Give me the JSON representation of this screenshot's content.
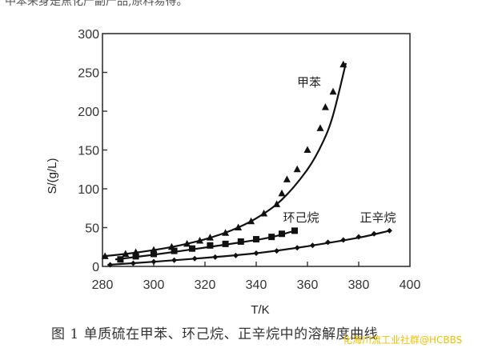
{
  "header_fragment": "中苯来身是焦化产副产品,原料易得。",
  "caption": "图 1   单质硫在甲苯、环己烷、正辛烷中的溶解度曲线",
  "watermark": "化海川流工业社群@HCBBS",
  "chart_data": {
    "type": "line",
    "title": "",
    "xlabel": "T/K",
    "ylabel": "S/(g/L)",
    "xlim": [
      280,
      400
    ],
    "ylim": [
      0,
      300
    ],
    "x_ticks": [
      "280",
      "300",
      "320",
      "340",
      "360",
      "380",
      "400"
    ],
    "y_ticks": [
      "0",
      "50",
      "100",
      "150",
      "200",
      "250",
      "300"
    ],
    "grid": false,
    "series": [
      {
        "name": "甲苯",
        "marker": "triangle",
        "points": [
          [
            281,
            13
          ],
          [
            289,
            16
          ],
          [
            293,
            18
          ],
          [
            300,
            21
          ],
          [
            307,
            25
          ],
          [
            313,
            29
          ],
          [
            318,
            33
          ],
          [
            322,
            37
          ],
          [
            328,
            43
          ],
          [
            333,
            50
          ],
          [
            338,
            58
          ],
          [
            343,
            68
          ],
          [
            348,
            80
          ],
          [
            350,
            94
          ],
          [
            352,
            112
          ],
          [
            356,
            125
          ],
          [
            360,
            150
          ],
          [
            365,
            178
          ],
          [
            367,
            205
          ],
          [
            370,
            225
          ],
          [
            374,
            260
          ]
        ],
        "curve": [
          [
            280,
            13
          ],
          [
            290,
            16.5
          ],
          [
            300,
            21
          ],
          [
            310,
            27
          ],
          [
            320,
            35
          ],
          [
            330,
            46
          ],
          [
            340,
            62
          ],
          [
            350,
            86
          ],
          [
            360,
            125
          ],
          [
            366,
            160
          ],
          [
            370,
            195
          ],
          [
            375,
            262
          ]
        ]
      },
      {
        "name": "环己烷",
        "marker": "square",
        "points": [
          [
            287,
            9
          ],
          [
            293,
            13
          ],
          [
            300,
            16
          ],
          [
            308,
            20
          ],
          [
            315,
            23
          ],
          [
            322,
            27
          ],
          [
            328,
            29
          ],
          [
            334,
            32
          ],
          [
            340,
            35
          ],
          [
            346,
            38
          ],
          [
            350,
            42
          ],
          [
            355,
            46
          ]
        ],
        "curve": [
          [
            285,
            9
          ],
          [
            300,
            15
          ],
          [
            315,
            22
          ],
          [
            330,
            29
          ],
          [
            345,
            37
          ],
          [
            355,
            46
          ]
        ]
      },
      {
        "name": "正辛烷",
        "marker": "diamond",
        "points": [
          [
            283,
            2
          ],
          [
            292,
            4
          ],
          [
            300,
            6
          ],
          [
            308,
            8
          ],
          [
            316,
            10
          ],
          [
            324,
            12
          ],
          [
            332,
            14
          ],
          [
            340,
            17
          ],
          [
            348,
            20
          ],
          [
            356,
            24
          ],
          [
            362,
            27
          ],
          [
            368,
            31
          ],
          [
            374,
            34
          ],
          [
            380,
            38
          ],
          [
            386,
            42
          ],
          [
            392,
            46
          ]
        ],
        "curve": [
          [
            282,
            2
          ],
          [
            300,
            6
          ],
          [
            320,
            11
          ],
          [
            340,
            17
          ],
          [
            360,
            26
          ],
          [
            380,
            37
          ],
          [
            392,
            46
          ]
        ]
      }
    ]
  }
}
